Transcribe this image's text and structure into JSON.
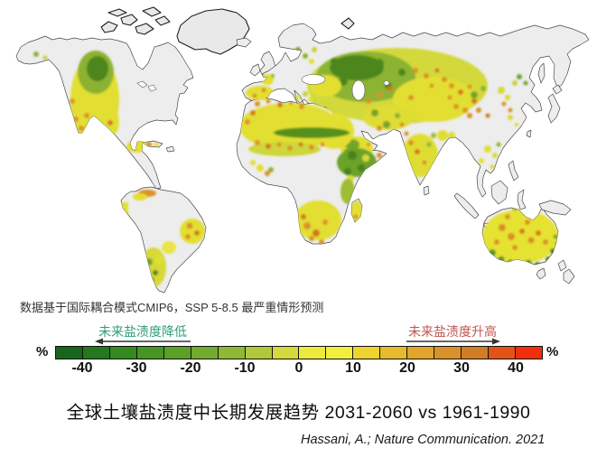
{
  "figure": {
    "annotation": "数据基于国际耦合模式CMIP6，SSP 5-8.5 最严重情形预测",
    "title": "全球土壤盐渍度中长期发展趋势 2031-2060 vs 1961-1990",
    "citation": "Hassani, A.; Nature Communication. 2021"
  },
  "legend": {
    "decrease_label": "未来盐渍度降低",
    "increase_label": "未来盐渍度升高",
    "decrease_label_color": "#2e9e7d",
    "increase_label_color": "#c25550",
    "unit_left": "%",
    "unit_right": "%",
    "ticks": [
      "-40",
      "-30",
      "-20",
      "-10",
      "0",
      "10",
      "20",
      "30",
      "40"
    ],
    "segment_colors": [
      "#17661b",
      "#24781d",
      "#348920",
      "#479522",
      "#5ba027",
      "#72ab2e",
      "#8fb835",
      "#b1c83c",
      "#d5d93e",
      "#ecea3d",
      "#f2ee3f",
      "#eed42f",
      "#e7bb2c",
      "#e1a52b",
      "#da9129",
      "#d07d25",
      "#e25318",
      "#ef2f0e"
    ]
  },
  "map": {
    "description": "世界地图：土壤盐渍度变化预测栅格图",
    "land_color": "#ededed",
    "coast_color": "#4a4a4a",
    "palette": {
      "dark_green": "#47821d",
      "green": "#76a42c",
      "yellow_green": "#c6d138",
      "yellow": "#e5e133",
      "orange": "#dd9128",
      "deep_orange": "#d4761f"
    }
  },
  "chart_data": {
    "type": "heatmap",
    "title": "全球土壤盐渍度中长期发展趋势 2031-2060 vs 1961-1990",
    "scale": {
      "min": -45,
      "max": 45,
      "unit": "%",
      "tick_labels": [
        "-40",
        "-30",
        "-20",
        "-10",
        "0",
        "10",
        "20",
        "30",
        "40"
      ],
      "negative_meaning": "未来盐渍度降低",
      "positive_meaning": "未来盐渍度升高"
    },
    "regions": [
      {
        "region": "北美洲西部",
        "trend": "落基山区域降低(绿)，美国西南部与墨西哥北部升高(黄/橙)"
      },
      {
        "region": "南美洲",
        "trend": "安第斯沿线与阿根廷轻度变化(黄/绿)，巴西东北部升高(黄/橙)"
      },
      {
        "region": "欧洲",
        "trend": "西班牙与法国西部升高(黄)，东南欧轻度变化"
      },
      {
        "region": "非洲",
        "trend": "撒哈拉升高(黄/橙)，萨赫勒与东非降低(绿)，南部非洲升高(黄/橙)"
      },
      {
        "region": "俄罗斯与中亚",
        "trend": "大面积降低(绿)与升高(黄/橙)混合"
      },
      {
        "region": "中东与印度",
        "trend": "黄绿混合，印度西北部升高(橙)"
      },
      {
        "region": "中国西北部",
        "trend": "黄/绿混合伴橙色斑块"
      },
      {
        "region": "澳大利亚",
        "trend": "大部升高(黄/橙)，南缘降低(绿)"
      }
    ]
  }
}
